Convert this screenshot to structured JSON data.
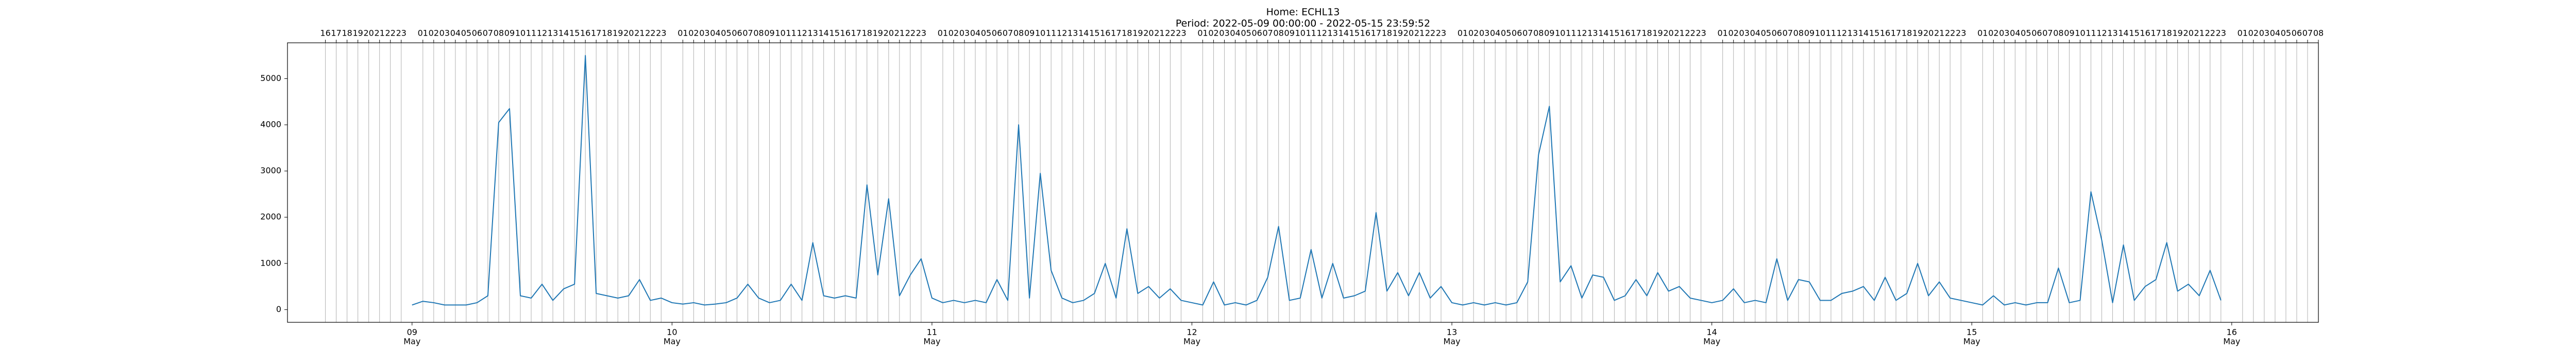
{
  "chart_data": {
    "type": "line",
    "title": "Home: ECHL13",
    "subtitle": "Period: 2022-05-09 00:00:00 - 2022-05-15 23:59:52",
    "color": "#1f77b4",
    "grid": true,
    "xlim": [
      "08 May 12:30",
      "16 May 08:00"
    ],
    "ylim": [
      -275,
      5775
    ],
    "yticks": [
      0,
      1000,
      2000,
      3000,
      4000,
      5000
    ],
    "xticks": [
      {
        "value": "09 May 00:00",
        "label": [
          "09",
          "May"
        ]
      },
      {
        "value": "10 May 00:00",
        "label": [
          "10",
          "May"
        ]
      },
      {
        "value": "11 May 00:00",
        "label": [
          "11",
          "May"
        ]
      },
      {
        "value": "12 May 00:00",
        "label": [
          "12",
          "May"
        ]
      },
      {
        "value": "13 May 00:00",
        "label": [
          "13",
          "May"
        ]
      },
      {
        "value": "14 May 00:00",
        "label": [
          "14",
          "May"
        ]
      },
      {
        "value": "15 May 00:00",
        "label": [
          "15",
          "May"
        ]
      },
      {
        "value": "16 May 00:00",
        "label": [
          "16",
          "May"
        ]
      }
    ],
    "x2ticks": [
      {
        "value": "08 May 16:00",
        "label": "16"
      },
      {
        "value": "08 May 17:00",
        "label": "17"
      },
      {
        "value": "08 May 18:00",
        "label": "18"
      },
      {
        "value": "08 May 19:00",
        "label": "19"
      },
      {
        "value": "08 May 20:00",
        "label": "20"
      },
      {
        "value": "08 May 21:00",
        "label": "21"
      },
      {
        "value": "08 May 22:00",
        "label": "22"
      },
      {
        "value": "08 May 23:00",
        "label": "23"
      },
      {
        "value": "09 May 01:00",
        "label": "01"
      },
      {
        "value": "09 May 02:00",
        "label": "02"
      },
      {
        "value": "09 May 03:00",
        "label": "03"
      },
      {
        "value": "09 May 04:00",
        "label": "04"
      },
      {
        "value": "09 May 05:00",
        "label": "05"
      },
      {
        "value": "09 May 06:00",
        "label": "06"
      },
      {
        "value": "09 May 07:00",
        "label": "07"
      },
      {
        "value": "09 May 08:00",
        "label": "08"
      },
      {
        "value": "09 May 09:00",
        "label": "09"
      },
      {
        "value": "09 May 10:00",
        "label": "10"
      },
      {
        "value": "09 May 11:00",
        "label": "11"
      },
      {
        "value": "09 May 12:00",
        "label": "12"
      },
      {
        "value": "09 May 13:00",
        "label": "13"
      },
      {
        "value": "09 May 14:00",
        "label": "14"
      },
      {
        "value": "09 May 15:00",
        "label": "15"
      },
      {
        "value": "09 May 16:00",
        "label": "16"
      },
      {
        "value": "09 May 17:00",
        "label": "17"
      },
      {
        "value": "09 May 18:00",
        "label": "18"
      },
      {
        "value": "09 May 19:00",
        "label": "19"
      },
      {
        "value": "09 May 20:00",
        "label": "20"
      },
      {
        "value": "09 May 21:00",
        "label": "21"
      },
      {
        "value": "09 May 22:00",
        "label": "22"
      },
      {
        "value": "09 May 23:00",
        "label": "23"
      },
      {
        "value": "10 May 01:00",
        "label": "01"
      },
      {
        "value": "10 May 02:00",
        "label": "02"
      },
      {
        "value": "10 May 03:00",
        "label": "03"
      },
      {
        "value": "10 May 04:00",
        "label": "04"
      },
      {
        "value": "10 May 05:00",
        "label": "05"
      },
      {
        "value": "10 May 06:00",
        "label": "06"
      },
      {
        "value": "10 May 07:00",
        "label": "07"
      },
      {
        "value": "10 May 08:00",
        "label": "08"
      },
      {
        "value": "10 May 09:00",
        "label": "09"
      },
      {
        "value": "10 May 10:00",
        "label": "10"
      },
      {
        "value": "10 May 11:00",
        "label": "11"
      },
      {
        "value": "10 May 12:00",
        "label": "12"
      },
      {
        "value": "10 May 13:00",
        "label": "13"
      },
      {
        "value": "10 May 14:00",
        "label": "14"
      },
      {
        "value": "10 May 15:00",
        "label": "15"
      },
      {
        "value": "10 May 16:00",
        "label": "16"
      },
      {
        "value": "10 May 17:00",
        "label": "17"
      },
      {
        "value": "10 May 18:00",
        "label": "18"
      },
      {
        "value": "10 May 19:00",
        "label": "19"
      },
      {
        "value": "10 May 20:00",
        "label": "20"
      },
      {
        "value": "10 May 21:00",
        "label": "21"
      },
      {
        "value": "10 May 22:00",
        "label": "22"
      },
      {
        "value": "10 May 23:00",
        "label": "23"
      },
      {
        "value": "11 May 01:00",
        "label": "01"
      },
      {
        "value": "11 May 02:00",
        "label": "02"
      },
      {
        "value": "11 May 03:00",
        "label": "03"
      },
      {
        "value": "11 May 04:00",
        "label": "04"
      },
      {
        "value": "11 May 05:00",
        "label": "05"
      },
      {
        "value": "11 May 06:00",
        "label": "06"
      },
      {
        "value": "11 May 07:00",
        "label": "07"
      },
      {
        "value": "11 May 08:00",
        "label": "08"
      },
      {
        "value": "11 May 09:00",
        "label": "09"
      },
      {
        "value": "11 May 10:00",
        "label": "10"
      },
      {
        "value": "11 May 11:00",
        "label": "11"
      },
      {
        "value": "11 May 12:00",
        "label": "12"
      },
      {
        "value": "11 May 13:00",
        "label": "13"
      },
      {
        "value": "11 May 14:00",
        "label": "14"
      },
      {
        "value": "11 May 15:00",
        "label": "15"
      },
      {
        "value": "11 May 16:00",
        "label": "16"
      },
      {
        "value": "11 May 17:00",
        "label": "17"
      },
      {
        "value": "11 May 18:00",
        "label": "18"
      },
      {
        "value": "11 May 19:00",
        "label": "19"
      },
      {
        "value": "11 May 20:00",
        "label": "20"
      },
      {
        "value": "11 May 21:00",
        "label": "21"
      },
      {
        "value": "11 May 22:00",
        "label": "22"
      },
      {
        "value": "11 May 23:00",
        "label": "23"
      },
      {
        "value": "12 May 01:00",
        "label": "01"
      },
      {
        "value": "12 May 02:00",
        "label": "02"
      },
      {
        "value": "12 May 03:00",
        "label": "03"
      },
      {
        "value": "12 May 04:00",
        "label": "04"
      },
      {
        "value": "12 May 05:00",
        "label": "05"
      },
      {
        "value": "12 May 06:00",
        "label": "06"
      },
      {
        "value": "12 May 07:00",
        "label": "07"
      },
      {
        "value": "12 May 08:00",
        "label": "08"
      },
      {
        "value": "12 May 09:00",
        "label": "09"
      },
      {
        "value": "12 May 10:00",
        "label": "10"
      },
      {
        "value": "12 May 11:00",
        "label": "11"
      },
      {
        "value": "12 May 12:00",
        "label": "12"
      },
      {
        "value": "12 May 13:00",
        "label": "13"
      },
      {
        "value": "12 May 14:00",
        "label": "14"
      },
      {
        "value": "12 May 15:00",
        "label": "15"
      },
      {
        "value": "12 May 16:00",
        "label": "16"
      },
      {
        "value": "12 May 17:00",
        "label": "17"
      },
      {
        "value": "12 May 18:00",
        "label": "18"
      },
      {
        "value": "12 May 19:00",
        "label": "19"
      },
      {
        "value": "12 May 20:00",
        "label": "20"
      },
      {
        "value": "12 May 21:00",
        "label": "21"
      },
      {
        "value": "12 May 22:00",
        "label": "22"
      },
      {
        "value": "12 May 23:00",
        "label": "23"
      },
      {
        "value": "13 May 01:00",
        "label": "01"
      },
      {
        "value": "13 May 02:00",
        "label": "02"
      },
      {
        "value": "13 May 03:00",
        "label": "03"
      },
      {
        "value": "13 May 04:00",
        "label": "04"
      },
      {
        "value": "13 May 05:00",
        "label": "05"
      },
      {
        "value": "13 May 06:00",
        "label": "06"
      },
      {
        "value": "13 May 07:00",
        "label": "07"
      },
      {
        "value": "13 May 08:00",
        "label": "08"
      },
      {
        "value": "13 May 09:00",
        "label": "09"
      },
      {
        "value": "13 May 10:00",
        "label": "10"
      },
      {
        "value": "13 May 11:00",
        "label": "11"
      },
      {
        "value": "13 May 12:00",
        "label": "12"
      },
      {
        "value": "13 May 13:00",
        "label": "13"
      },
      {
        "value": "13 May 14:00",
        "label": "14"
      },
      {
        "value": "13 May 15:00",
        "label": "15"
      },
      {
        "value": "13 May 16:00",
        "label": "16"
      },
      {
        "value": "13 May 17:00",
        "label": "17"
      },
      {
        "value": "13 May 18:00",
        "label": "18"
      },
      {
        "value": "13 May 19:00",
        "label": "19"
      },
      {
        "value": "13 May 20:00",
        "label": "20"
      },
      {
        "value": "13 May 21:00",
        "label": "21"
      },
      {
        "value": "13 May 22:00",
        "label": "22"
      },
      {
        "value": "13 May 23:00",
        "label": "23"
      },
      {
        "value": "14 May 01:00",
        "label": "01"
      },
      {
        "value": "14 May 02:00",
        "label": "02"
      },
      {
        "value": "14 May 03:00",
        "label": "03"
      },
      {
        "value": "14 May 04:00",
        "label": "04"
      },
      {
        "value": "14 May 05:00",
        "label": "05"
      },
      {
        "value": "14 May 06:00",
        "label": "06"
      },
      {
        "value": "14 May 07:00",
        "label": "07"
      },
      {
        "value": "14 May 08:00",
        "label": "08"
      },
      {
        "value": "14 May 09:00",
        "label": "09"
      },
      {
        "value": "14 May 10:00",
        "label": "10"
      },
      {
        "value": "14 May 11:00",
        "label": "11"
      },
      {
        "value": "14 May 12:00",
        "label": "12"
      },
      {
        "value": "14 May 13:00",
        "label": "13"
      },
      {
        "value": "14 May 14:00",
        "label": "14"
      },
      {
        "value": "14 May 15:00",
        "label": "15"
      },
      {
        "value": "14 May 16:00",
        "label": "16"
      },
      {
        "value": "14 May 17:00",
        "label": "17"
      },
      {
        "value": "14 May 18:00",
        "label": "18"
      },
      {
        "value": "14 May 19:00",
        "label": "19"
      },
      {
        "value": "14 May 20:00",
        "label": "20"
      },
      {
        "value": "14 May 21:00",
        "label": "21"
      },
      {
        "value": "14 May 22:00",
        "label": "22"
      },
      {
        "value": "14 May 23:00",
        "label": "23"
      },
      {
        "value": "15 May 01:00",
        "label": "01"
      },
      {
        "value": "15 May 02:00",
        "label": "02"
      },
      {
        "value": "15 May 03:00",
        "label": "03"
      },
      {
        "value": "15 May 04:00",
        "label": "04"
      },
      {
        "value": "15 May 05:00",
        "label": "05"
      },
      {
        "value": "15 May 06:00",
        "label": "06"
      },
      {
        "value": "15 May 07:00",
        "label": "07"
      },
      {
        "value": "15 May 08:00",
        "label": "08"
      },
      {
        "value": "15 May 09:00",
        "label": "09"
      },
      {
        "value": "15 May 10:00",
        "label": "10"
      },
      {
        "value": "15 May 11:00",
        "label": "11"
      },
      {
        "value": "15 May 12:00",
        "label": "12"
      },
      {
        "value": "15 May 13:00",
        "label": "13"
      },
      {
        "value": "15 May 14:00",
        "label": "14"
      },
      {
        "value": "15 May 15:00",
        "label": "15"
      },
      {
        "value": "15 May 16:00",
        "label": "16"
      },
      {
        "value": "15 May 17:00",
        "label": "17"
      },
      {
        "value": "15 May 18:00",
        "label": "18"
      },
      {
        "value": "15 May 19:00",
        "label": "19"
      },
      {
        "value": "15 May 20:00",
        "label": "20"
      },
      {
        "value": "15 May 21:00",
        "label": "21"
      },
      {
        "value": "15 May 22:00",
        "label": "22"
      },
      {
        "value": "15 May 23:00",
        "label": "23"
      },
      {
        "value": "16 May 01:00",
        "label": "01"
      },
      {
        "value": "16 May 02:00",
        "label": "02"
      },
      {
        "value": "16 May 03:00",
        "label": "03"
      },
      {
        "value": "16 May 04:00",
        "label": "04"
      },
      {
        "value": "16 May 05:00",
        "label": "05"
      },
      {
        "value": "16 May 06:00",
        "label": "06"
      },
      {
        "value": "16 May 07:00",
        "label": "07"
      },
      {
        "value": "16 May 08:00",
        "label": "08"
      }
    ],
    "x": [
      "09 May 00:00",
      "09 May 01:00",
      "09 May 02:00",
      "09 May 03:00",
      "09 May 04:00",
      "09 May 05:00",
      "09 May 06:00",
      "09 May 07:00",
      "09 May 08:00",
      "09 May 09:00",
      "09 May 10:00",
      "09 May 11:00",
      "09 May 12:00",
      "09 May 13:00",
      "09 May 14:00",
      "09 May 15:00",
      "09 May 16:00",
      "09 May 17:00",
      "09 May 18:00",
      "09 May 19:00",
      "09 May 20:00",
      "09 May 21:00",
      "09 May 22:00",
      "09 May 23:00",
      "10 May 00:00",
      "10 May 01:00",
      "10 May 02:00",
      "10 May 03:00",
      "10 May 04:00",
      "10 May 05:00",
      "10 May 06:00",
      "10 May 07:00",
      "10 May 08:00",
      "10 May 09:00",
      "10 May 10:00",
      "10 May 11:00",
      "10 May 12:00",
      "10 May 13:00",
      "10 May 14:00",
      "10 May 15:00",
      "10 May 16:00",
      "10 May 17:00",
      "10 May 18:00",
      "10 May 19:00",
      "10 May 20:00",
      "10 May 21:00",
      "10 May 22:00",
      "10 May 23:00",
      "11 May 00:00",
      "11 May 01:00",
      "11 May 02:00",
      "11 May 03:00",
      "11 May 04:00",
      "11 May 05:00",
      "11 May 06:00",
      "11 May 07:00",
      "11 May 08:00",
      "11 May 09:00",
      "11 May 10:00",
      "11 May 11:00",
      "11 May 12:00",
      "11 May 13:00",
      "11 May 14:00",
      "11 May 15:00",
      "11 May 16:00",
      "11 May 17:00",
      "11 May 18:00",
      "11 May 19:00",
      "11 May 20:00",
      "11 May 21:00",
      "11 May 22:00",
      "11 May 23:00",
      "12 May 00:00",
      "12 May 01:00",
      "12 May 02:00",
      "12 May 03:00",
      "12 May 04:00",
      "12 May 05:00",
      "12 May 06:00",
      "12 May 07:00",
      "12 May 08:00",
      "12 May 09:00",
      "12 May 10:00",
      "12 May 11:00",
      "12 May 12:00",
      "12 May 13:00",
      "12 May 14:00",
      "12 May 15:00",
      "12 May 16:00",
      "12 May 17:00",
      "12 May 18:00",
      "12 May 19:00",
      "12 May 20:00",
      "12 May 21:00",
      "12 May 22:00",
      "12 May 23:00",
      "13 May 00:00",
      "13 May 01:00",
      "13 May 02:00",
      "13 May 03:00",
      "13 May 04:00",
      "13 May 05:00",
      "13 May 06:00",
      "13 May 07:00",
      "13 May 08:00",
      "13 May 09:00",
      "13 May 10:00",
      "13 May 11:00",
      "13 May 12:00",
      "13 May 13:00",
      "13 May 14:00",
      "13 May 15:00",
      "13 May 16:00",
      "13 May 17:00",
      "13 May 18:00",
      "13 May 19:00",
      "13 May 20:00",
      "13 May 21:00",
      "13 May 22:00",
      "13 May 23:00",
      "14 May 00:00",
      "14 May 01:00",
      "14 May 02:00",
      "14 May 03:00",
      "14 May 04:00",
      "14 May 05:00",
      "14 May 06:00",
      "14 May 07:00",
      "14 May 08:00",
      "14 May 09:00",
      "14 May 10:00",
      "14 May 11:00",
      "14 May 12:00",
      "14 May 13:00",
      "14 May 14:00",
      "14 May 15:00",
      "14 May 16:00",
      "14 May 17:00",
      "14 May 18:00",
      "14 May 19:00",
      "14 May 20:00",
      "14 May 21:00",
      "14 May 22:00",
      "14 May 23:00",
      "15 May 00:00",
      "15 May 01:00",
      "15 May 02:00",
      "15 May 03:00",
      "15 May 04:00",
      "15 May 05:00",
      "15 May 06:00",
      "15 May 07:00",
      "15 May 08:00",
      "15 May 09:00",
      "15 May 10:00",
      "15 May 11:00",
      "15 May 12:00",
      "15 May 13:00",
      "15 May 14:00",
      "15 May 15:00",
      "15 May 16:00",
      "15 May 17:00",
      "15 May 18:00",
      "15 May 19:00",
      "15 May 20:00",
      "15 May 21:00",
      "15 May 22:00",
      "15 May 23:00"
    ],
    "values": [
      100,
      180,
      150,
      100,
      100,
      100,
      150,
      300,
      4050,
      4350,
      300,
      250,
      550,
      200,
      450,
      550,
      5500,
      350,
      300,
      250,
      300,
      650,
      200,
      250,
      150,
      120,
      150,
      100,
      120,
      150,
      250,
      550,
      250,
      150,
      200,
      550,
      200,
      1450,
      300,
      250,
      300,
      250,
      2700,
      750,
      2400,
      300,
      750,
      1100,
      250,
      150,
      200,
      150,
      200,
      150,
      650,
      200,
      4000,
      250,
      2950,
      850,
      250,
      150,
      200,
      350,
      1000,
      250,
      1750,
      350,
      500,
      250,
      450,
      200,
      150,
      100,
      600,
      100,
      150,
      100,
      200,
      700,
      1800,
      200,
      250,
      1300,
      250,
      1000,
      250,
      300,
      400,
      2100,
      400,
      800,
      300,
      800,
      250,
      500,
      150,
      100,
      150,
      100,
      150,
      100,
      150,
      600,
      3350,
      4400,
      600,
      950,
      250,
      750,
      700,
      200,
      300,
      650,
      300,
      800,
      400,
      500,
      250,
      200,
      150,
      200,
      450,
      150,
      200,
      150,
      1100,
      200,
      650,
      600,
      200,
      200,
      350,
      400,
      500,
      200,
      700,
      200,
      350,
      1000,
      300,
      600,
      250,
      200,
      150,
      100,
      300,
      100,
      150,
      100,
      150,
      150,
      900,
      150,
      200,
      2550,
      1500,
      150,
      1400,
      200,
      500,
      650,
      1450,
      400,
      550,
      300,
      850,
      200
    ]
  }
}
